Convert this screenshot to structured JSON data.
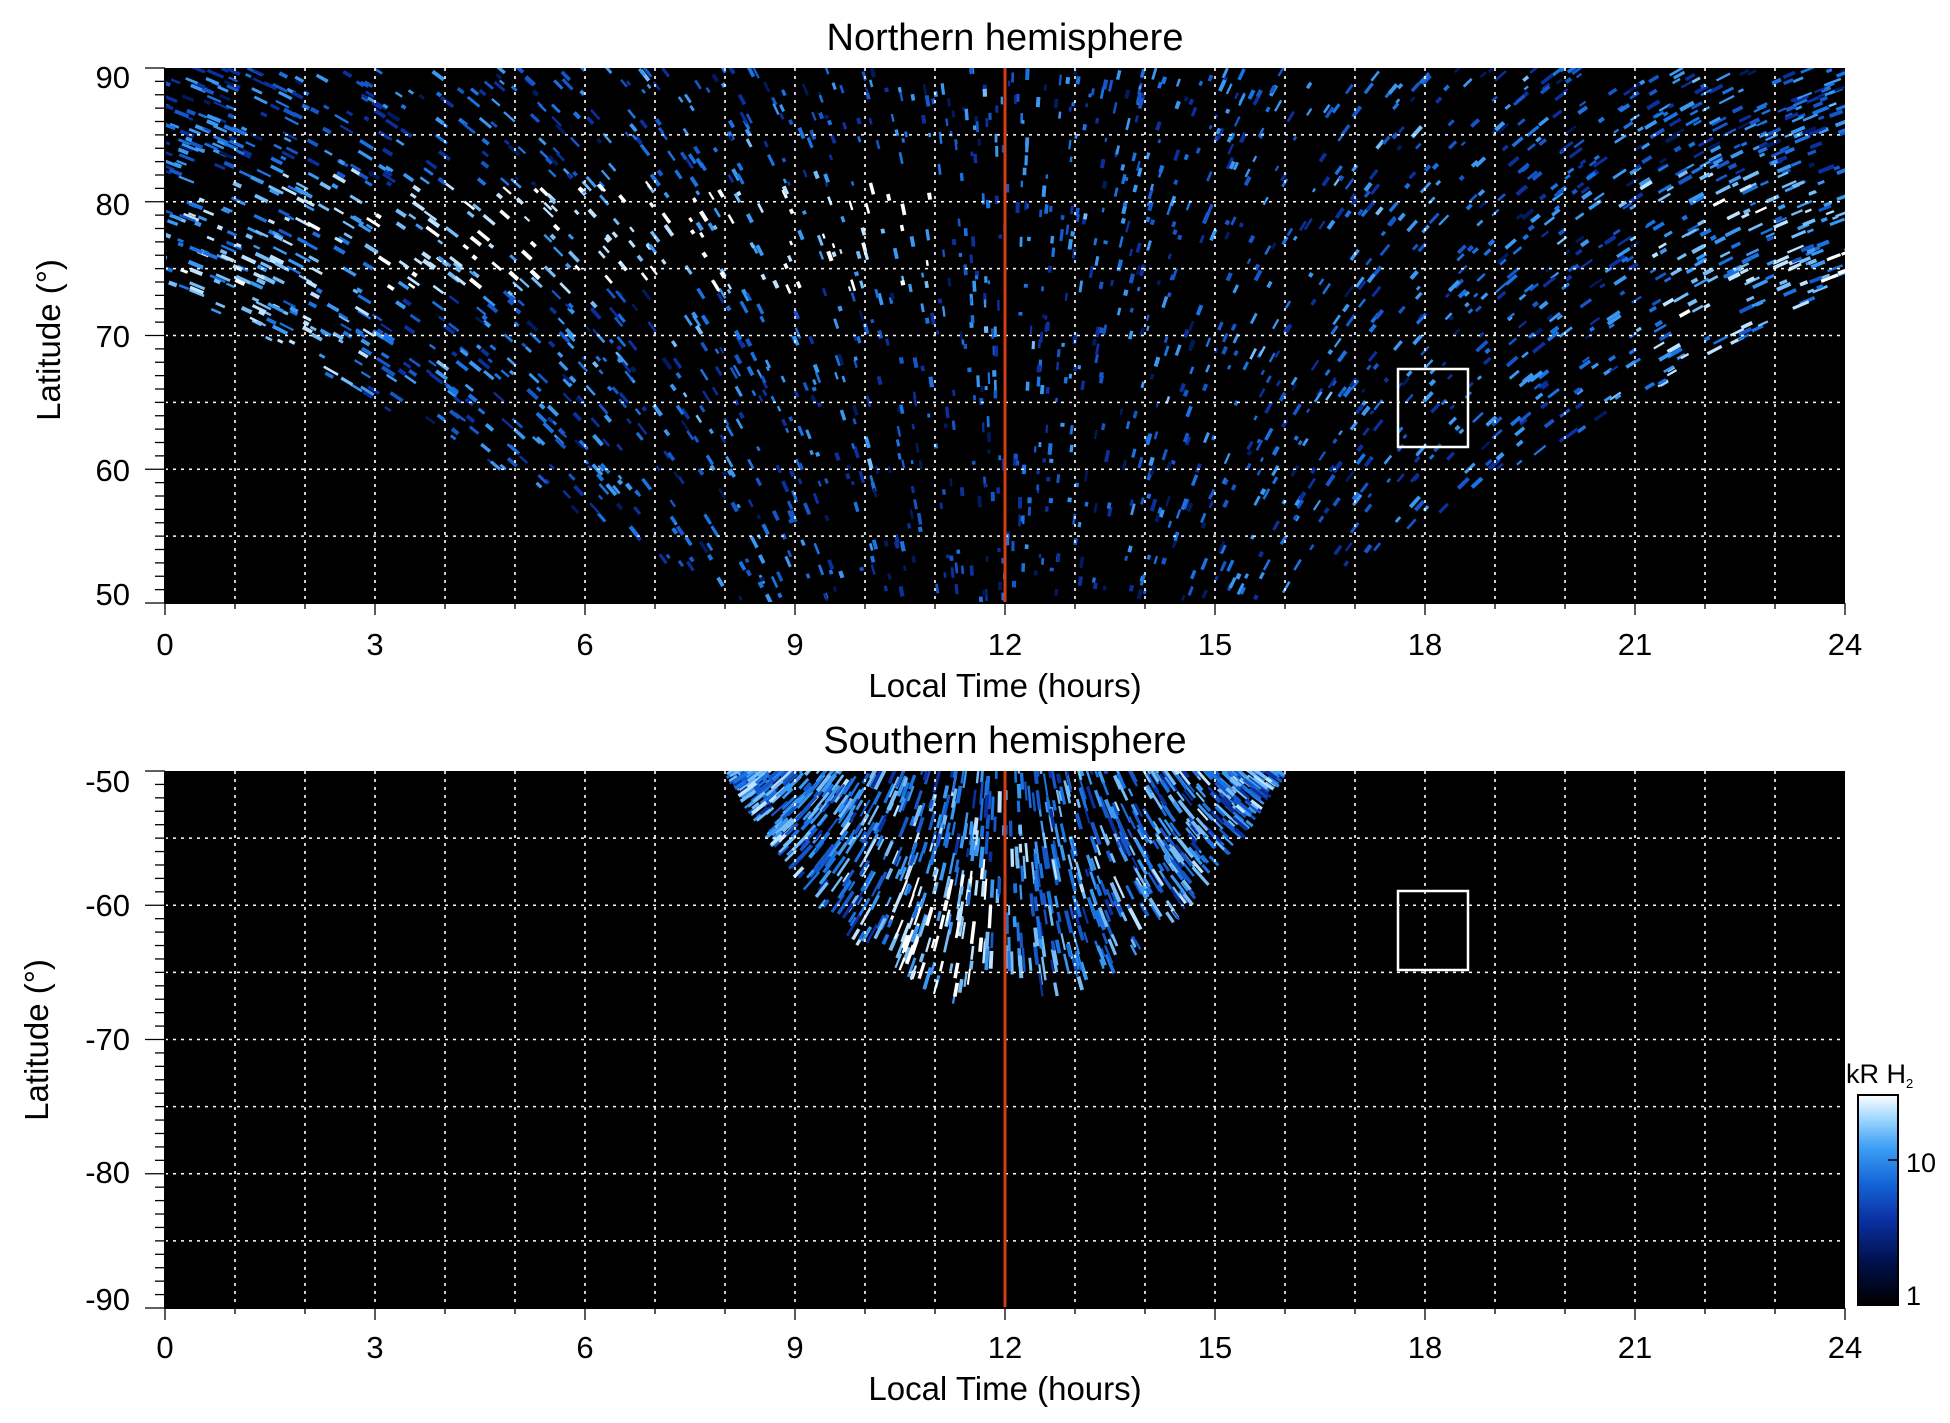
{
  "chart_data": [
    {
      "type": "heatmap",
      "title": "Northern hemisphere",
      "xlabel": "Local Time (hours)",
      "ylabel": "Latitude (°)",
      "xlim": [
        0,
        24
      ],
      "ylim": [
        50,
        90
      ],
      "xticks": [
        "0",
        "3",
        "6",
        "9",
        "12",
        "15",
        "18",
        "21",
        "24"
      ],
      "yticks": [
        "90",
        "80",
        "70",
        "60",
        "50"
      ],
      "grid": true,
      "noon_line_local_time": 12,
      "marker_box": {
        "local_time": [
          17.6,
          18.6
        ],
        "latitude": [
          61.5,
          67.5
        ]
      }
    },
    {
      "type": "heatmap",
      "title": "Southern hemisphere",
      "xlabel": "Local Time (hours)",
      "ylabel": "Latitude (°)",
      "xlim": [
        0,
        24
      ],
      "ylim": [
        -90,
        -50
      ],
      "xticks": [
        "0",
        "3",
        "6",
        "9",
        "12",
        "15",
        "18",
        "21",
        "24"
      ],
      "yticks": [
        "-50",
        "-60",
        "-70",
        "-80",
        "-90"
      ],
      "grid": true,
      "noon_line_local_time": 12,
      "marker_box": {
        "local_time": [
          17.6,
          18.6
        ],
        "latitude": [
          -65,
          -59
        ]
      }
    }
  ],
  "colorbar": {
    "label_main": "kR H",
    "label_sub": "2",
    "scale": "log",
    "ticks": [
      "10",
      "1"
    ],
    "range": [
      1,
      20
    ],
    "colors": [
      "#000000",
      "#00104a",
      "#0a2fa0",
      "#1565d8",
      "#3d9ff5",
      "#a8dcff",
      "#ffffff"
    ]
  },
  "colors": {
    "noon_line": "#d23b17",
    "grid": "#ffffff",
    "plot_bg": "#000000"
  }
}
